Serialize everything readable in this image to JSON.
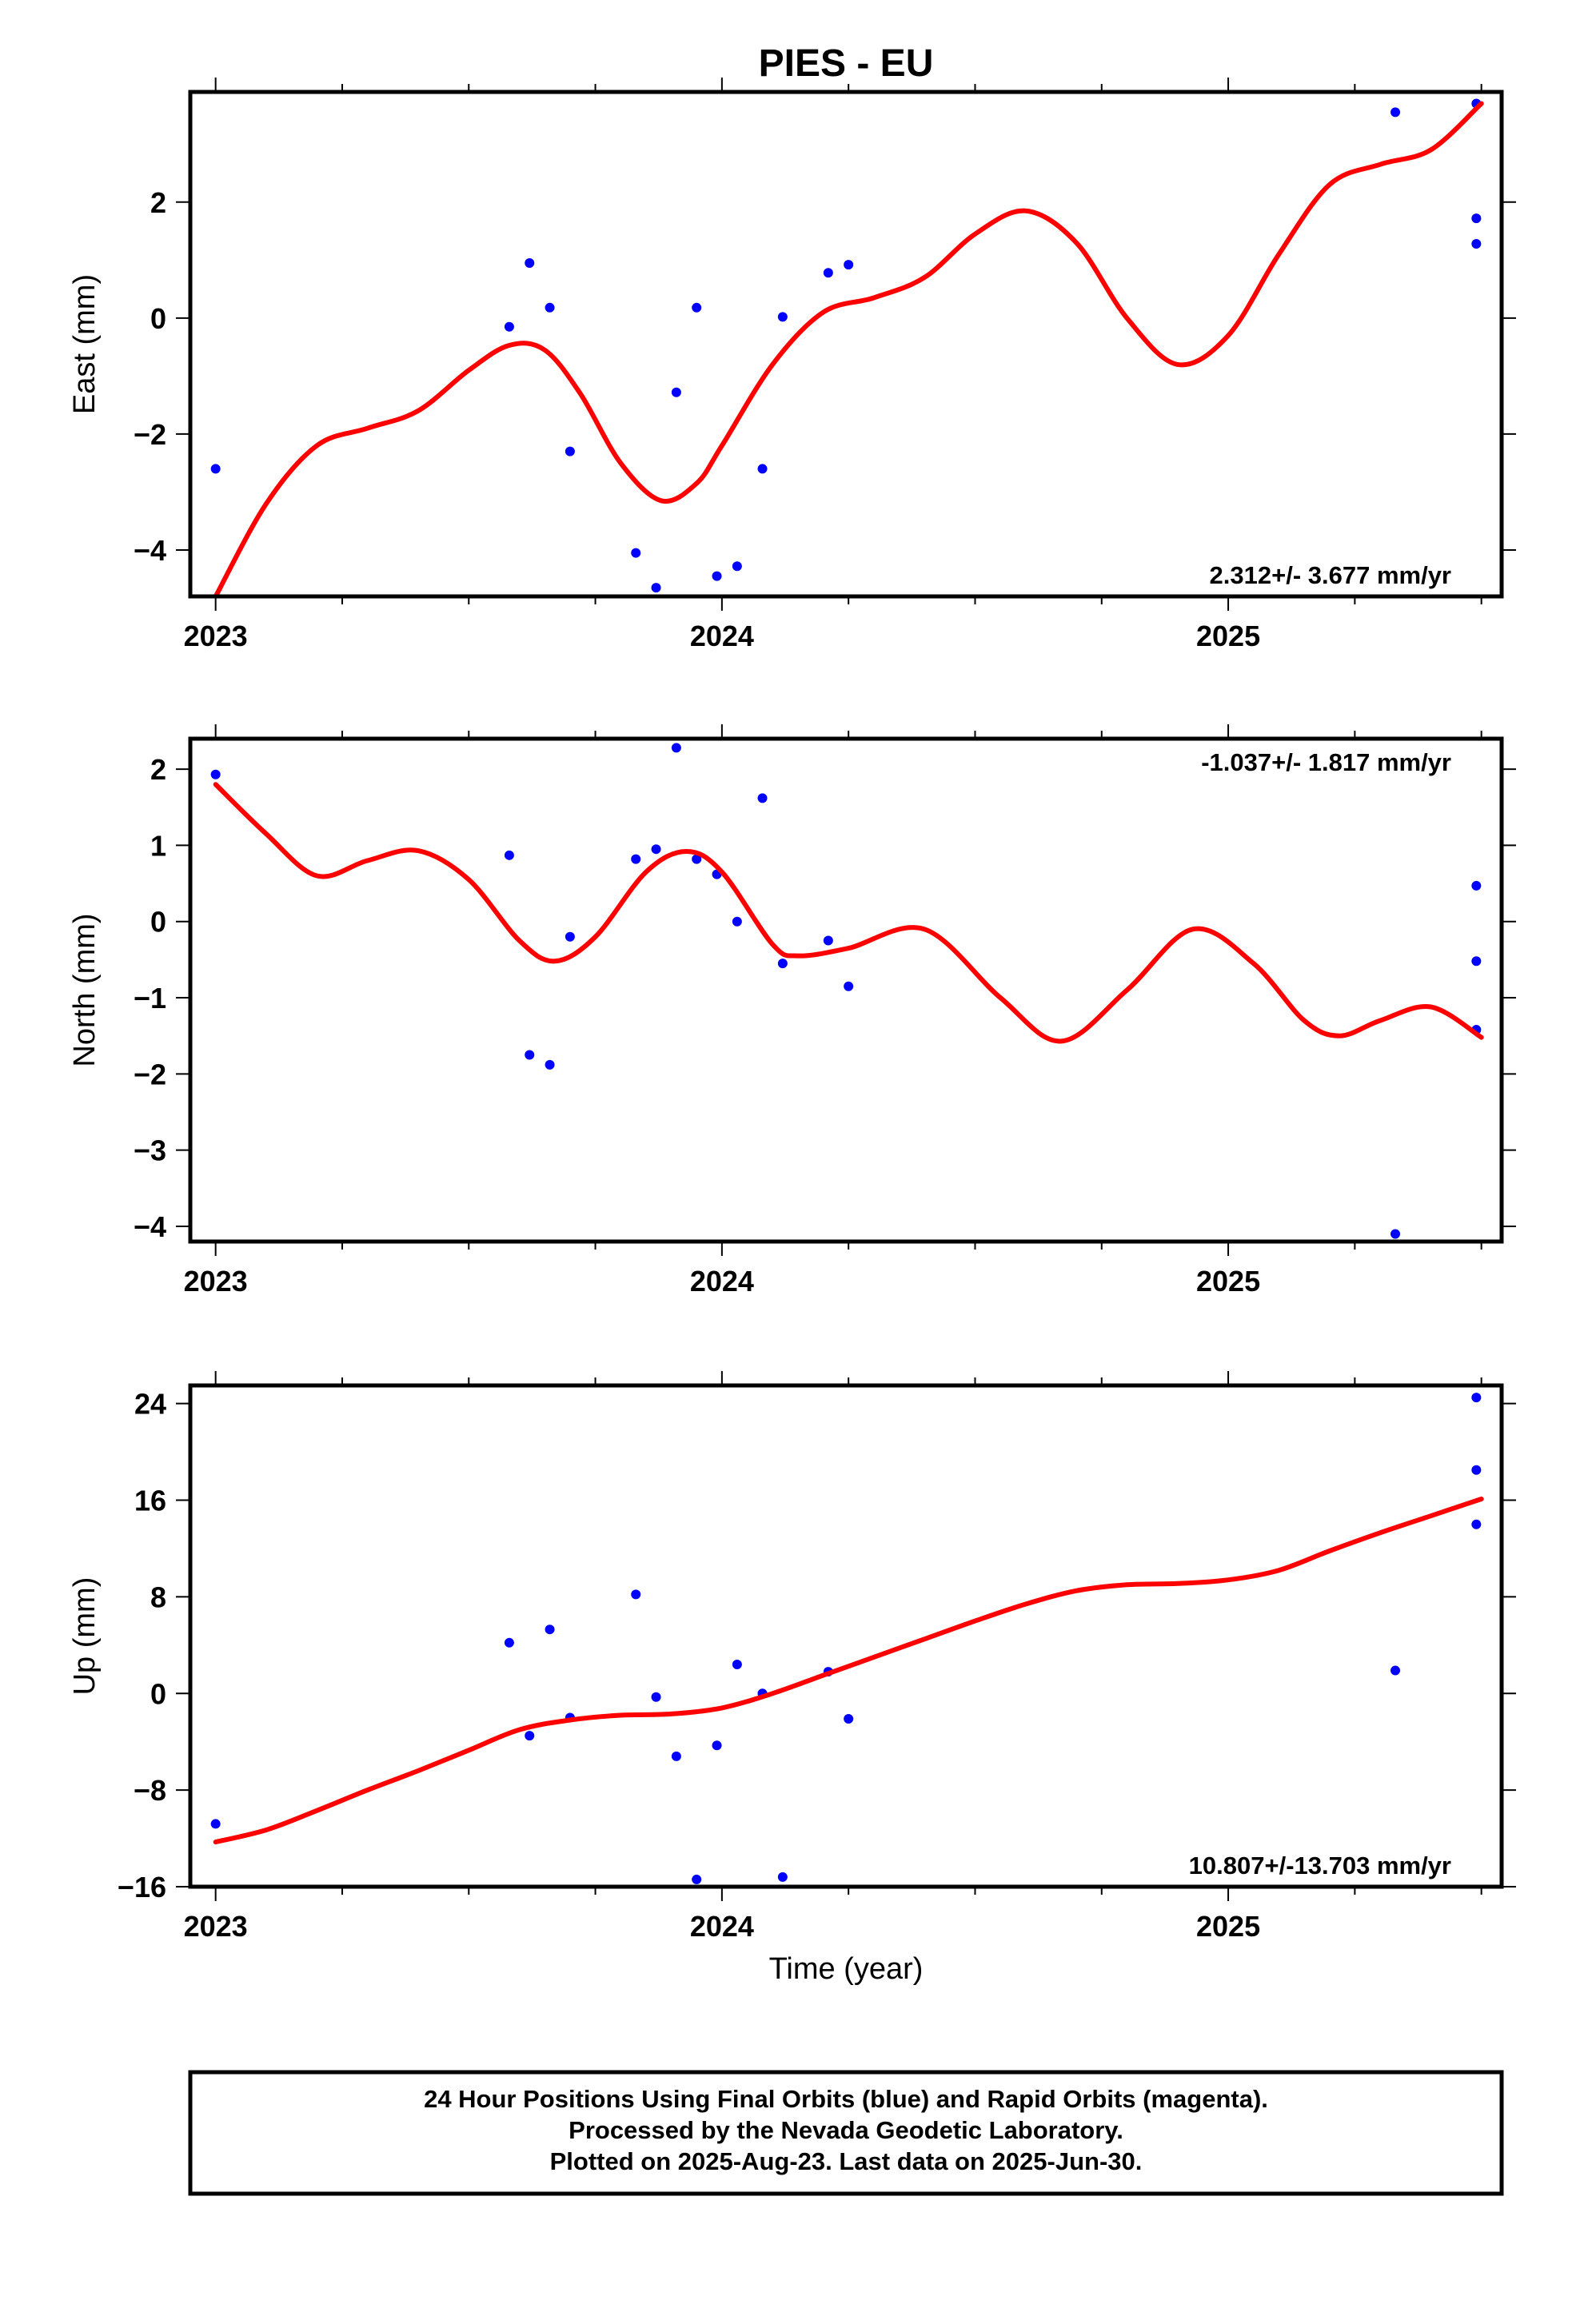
{
  "title": "PIES - EU",
  "xlabel": "Time (year)",
  "footer": {
    "line1": "24 Hour Positions Using Final Orbits (blue) and Rapid Orbits (magenta).",
    "line2": "Processed by the Nevada Geodetic Laboratory.",
    "line3": "Plotted on 2025-Aug-23. Last data on 2025-Jun-30."
  },
  "colors": {
    "points": "#0000ff",
    "fit": "#ff0000",
    "frame": "#000000"
  },
  "chart_data": [
    {
      "type": "scatter",
      "panel": "east",
      "ylabel": "East (mm)",
      "rate": "2.312+/- 3.677 mm/yr",
      "rate_position": "bottom-right",
      "xlim": [
        2022.95,
        2025.54
      ],
      "ylim": [
        -4.8,
        3.9
      ],
      "xticks": [
        2023,
        2024,
        2025
      ],
      "xtick_labels": [
        "2023",
        "2024",
        "2025"
      ],
      "yticks": [
        -4,
        -2,
        0,
        2
      ],
      "ytick_labels": [
        "−4",
        "−2",
        "0",
        "2"
      ],
      "series": [
        {
          "kind": "points",
          "x": [
            2023.0,
            2023.58,
            2023.62,
            2023.66,
            2023.7,
            2023.83,
            2023.87,
            2023.91,
            2023.95,
            2023.99,
            2024.03,
            2024.08,
            2024.12,
            2024.21,
            2024.25,
            2025.33,
            2025.49,
            2025.49,
            2025.49
          ],
          "y": [
            -2.6,
            -0.15,
            0.95,
            0.18,
            -2.3,
            -4.05,
            -4.65,
            -1.28,
            0.18,
            -4.45,
            -4.28,
            -2.6,
            0.02,
            0.78,
            0.92,
            3.55,
            3.7,
            1.72,
            1.28
          ]
        },
        {
          "kind": "fit",
          "x": [
            2023.0,
            2023.1,
            2023.2,
            2023.3,
            2023.4,
            2023.5,
            2023.58,
            2023.65,
            2023.72,
            2023.8,
            2023.88,
            2023.95,
            2024.0,
            2024.1,
            2024.2,
            2024.3,
            2024.4,
            2024.5,
            2024.6,
            2024.7,
            2024.8,
            2024.9,
            2025.0,
            2025.1,
            2025.2,
            2025.3,
            2025.4,
            2025.5
          ],
          "y": [
            -4.8,
            -3.2,
            -2.2,
            -1.9,
            -1.6,
            -0.9,
            -0.47,
            -0.55,
            -1.3,
            -2.5,
            -3.15,
            -2.85,
            -2.2,
            -0.8,
            0.1,
            0.35,
            0.7,
            1.45,
            1.85,
            1.3,
            0.0,
            -0.8,
            -0.3,
            1.1,
            2.3,
            2.65,
            2.9,
            3.7
          ]
        }
      ]
    },
    {
      "type": "scatter",
      "panel": "north",
      "ylabel": "North (mm)",
      "rate": "-1.037+/- 1.817 mm/yr",
      "rate_position": "top-right",
      "xlim": [
        2022.95,
        2025.54
      ],
      "ylim": [
        -4.2,
        2.4
      ],
      "xticks": [
        2023,
        2024,
        2025
      ],
      "xtick_labels": [
        "2023",
        "2024",
        "2025"
      ],
      "yticks": [
        -4,
        -3,
        -2,
        -1,
        0,
        1,
        2
      ],
      "ytick_labels": [
        "−4",
        "−3",
        "−2",
        "−1",
        "0",
        "1",
        "2"
      ],
      "series": [
        {
          "kind": "points",
          "x": [
            2023.0,
            2023.58,
            2023.62,
            2023.66,
            2023.7,
            2023.83,
            2023.87,
            2023.91,
            2023.95,
            2023.99,
            2024.03,
            2024.08,
            2024.12,
            2024.21,
            2024.25,
            2025.33,
            2025.49,
            2025.49,
            2025.49
          ],
          "y": [
            1.93,
            0.87,
            -1.75,
            -1.88,
            -0.2,
            0.82,
            0.95,
            2.28,
            0.82,
            0.62,
            0.0,
            1.62,
            -0.55,
            -0.25,
            -0.85,
            -4.1,
            0.47,
            -0.52,
            -1.42
          ]
        },
        {
          "kind": "fit",
          "x": [
            2023.0,
            2023.1,
            2023.2,
            2023.3,
            2023.4,
            2023.5,
            2023.6,
            2023.67,
            2023.75,
            2023.85,
            2023.93,
            2024.0,
            2024.1,
            2024.15,
            2024.25,
            2024.4,
            2024.55,
            2024.67,
            2024.8,
            2024.93,
            2025.05,
            2025.15,
            2025.22,
            2025.3,
            2025.4,
            2025.5
          ],
          "y": [
            1.8,
            1.15,
            0.6,
            0.8,
            0.93,
            0.55,
            -0.25,
            -0.52,
            -0.2,
            0.65,
            0.92,
            0.65,
            -0.3,
            -0.45,
            -0.35,
            -0.1,
            -1.0,
            -1.57,
            -0.9,
            -0.1,
            -0.55,
            -1.3,
            -1.5,
            -1.3,
            -1.12,
            -1.52
          ]
        }
      ]
    },
    {
      "type": "scatter",
      "panel": "up",
      "ylabel": "Up (mm)",
      "rate": "10.807+/-13.703 mm/yr",
      "rate_position": "bottom-right",
      "xlim": [
        2022.95,
        2025.54
      ],
      "ylim": [
        -16,
        25.5
      ],
      "xticks": [
        2023,
        2024,
        2025
      ],
      "xtick_labels": [
        "2023",
        "2024",
        "2025"
      ],
      "yticks": [
        -16,
        -8,
        0,
        8,
        16,
        24
      ],
      "ytick_labels": [
        "−16",
        "−8",
        "0",
        "8",
        "16",
        "24"
      ],
      "series": [
        {
          "kind": "points",
          "x": [
            2023.0,
            2023.58,
            2023.62,
            2023.66,
            2023.7,
            2023.83,
            2023.87,
            2023.91,
            2023.95,
            2023.99,
            2024.03,
            2024.08,
            2024.12,
            2024.21,
            2024.25,
            2025.33,
            2025.49,
            2025.49,
            2025.49
          ],
          "y": [
            -10.8,
            4.2,
            -3.5,
            5.3,
            -2.0,
            8.2,
            -0.3,
            -5.2,
            -15.4,
            -4.3,
            2.4,
            0.0,
            -15.2,
            1.8,
            -2.1,
            1.9,
            24.5,
            18.5,
            14.0
          ]
        },
        {
          "kind": "fit",
          "x": [
            2023.0,
            2023.1,
            2023.2,
            2023.3,
            2023.4,
            2023.5,
            2023.6,
            2023.7,
            2023.8,
            2023.9,
            2024.0,
            2024.1,
            2024.2,
            2024.3,
            2024.4,
            2024.5,
            2024.6,
            2024.7,
            2024.8,
            2024.9,
            2025.0,
            2025.1,
            2025.2,
            2025.3,
            2025.4,
            2025.5
          ],
          "y": [
            -12.3,
            -11.3,
            -9.7,
            -8.0,
            -6.4,
            -4.7,
            -3.0,
            -2.2,
            -1.8,
            -1.7,
            -1.2,
            0.0,
            1.5,
            3.0,
            4.5,
            6.0,
            7.4,
            8.5,
            9.0,
            9.1,
            9.4,
            10.2,
            11.8,
            13.3,
            14.7,
            16.1
          ]
        }
      ]
    }
  ]
}
